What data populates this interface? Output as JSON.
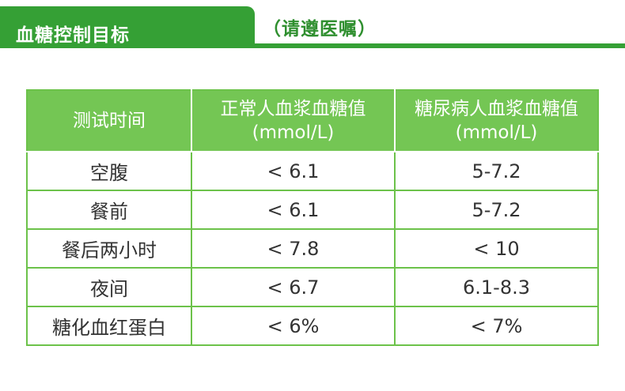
{
  "header": {
    "title": "血糖控制目标",
    "subtitle": "（请遵医嘱）"
  },
  "table": {
    "columns": [
      {
        "line1": "测试时间",
        "line2": ""
      },
      {
        "line1": "正常人血浆血糖值",
        "line2": "(mmol/L)"
      },
      {
        "line1": "糖尿病人血浆血糖值",
        "line2": "(mmol/L)"
      }
    ],
    "rows": [
      {
        "time": "空腹",
        "normal": "< 6.1",
        "diabetic": "5-7.2"
      },
      {
        "time": "餐前",
        "normal": "< 6.1",
        "diabetic": "5-7.2"
      },
      {
        "time": "餐后两小时",
        "normal": "< 7.8",
        "diabetic": "< 10"
      },
      {
        "time": "夜间",
        "normal": "< 6.7",
        "diabetic": "6.1-8.3"
      },
      {
        "time": "糖化血红蛋白",
        "normal": "< 6%",
        "diabetic": "< 7%"
      }
    ]
  },
  "colors": {
    "header_green": "#35a035",
    "table_header_green": "#74c654",
    "border_green": "#6cc24a"
  }
}
